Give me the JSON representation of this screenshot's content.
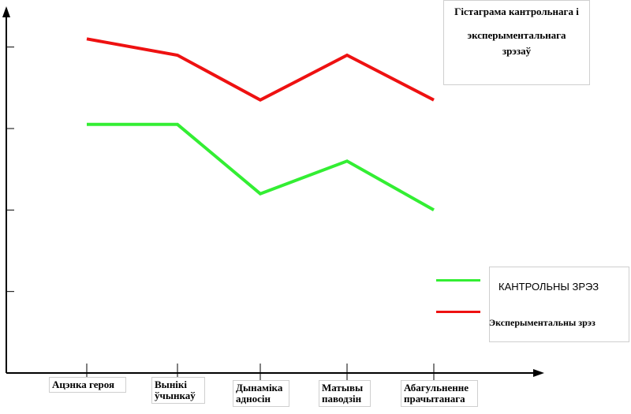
{
  "chart_data": {
    "type": "line",
    "title_lines": [
      "Гістаграма кантрольнага і",
      "эксперыментальнага",
      "зрэзаў"
    ],
    "categories": [
      [
        "Ацэнка героя"
      ],
      [
        "Вынікі",
        "ўчынкаў"
      ],
      [
        "Дынаміка",
        "адносін"
      ],
      [
        "Матывы",
        "паводзін"
      ],
      [
        "Абагульненне",
        "прачытанага"
      ]
    ],
    "series": [
      {
        "name": "КАНТРОЛЬНЫ ЗРЭЗ",
        "color": "#33ee33",
        "values": [
          3.05,
          3.05,
          2.2,
          2.6,
          2.0
        ]
      },
      {
        "name": "Эксперыментальны зрэз",
        "color": "#ee1111",
        "values": [
          4.1,
          3.9,
          3.35,
          3.9,
          3.35
        ]
      }
    ],
    "ylim": [
      0,
      4.5
    ],
    "y_ticks": [
      1,
      2,
      3,
      4
    ],
    "grid": false,
    "legend_position": "right"
  }
}
